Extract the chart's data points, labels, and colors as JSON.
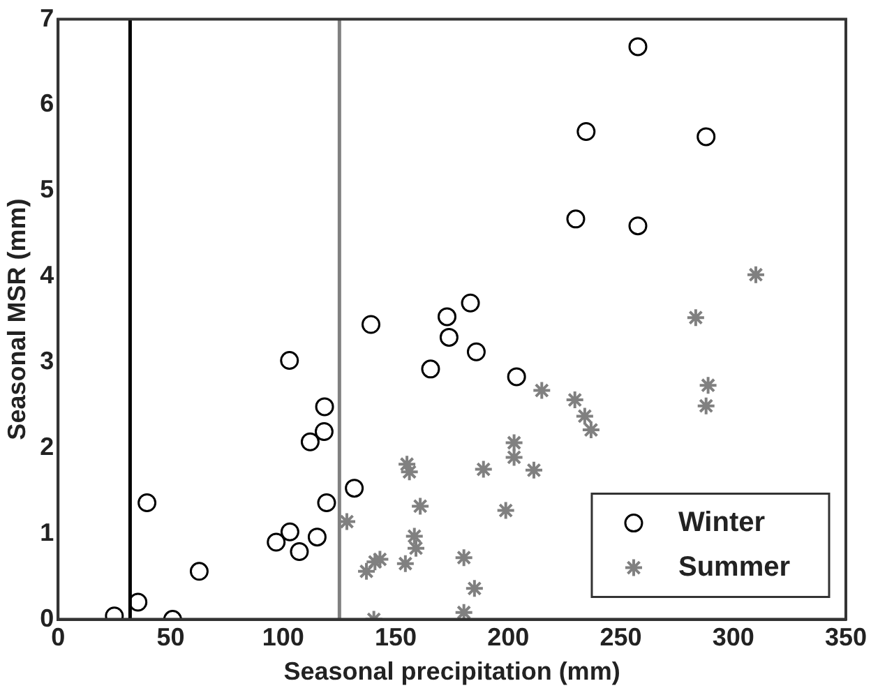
{
  "chart_data": {
    "type": "scatter",
    "xlabel": "Seasonal precipitation (mm)",
    "ylabel": "Seasonal MSR (mm)",
    "xlim": [
      0,
      350
    ],
    "ylim": [
      0,
      7
    ],
    "xticks": [
      0,
      50,
      100,
      150,
      200,
      250,
      300,
      350
    ],
    "yticks": [
      0,
      1,
      2,
      3,
      4,
      5,
      6,
      7
    ],
    "grid": false,
    "legend": "bottom right",
    "series": [
      {
        "name": "Winter",
        "color": "#000000",
        "marker": "circle",
        "x": [
          25,
          35.5,
          50.9,
          39.5,
          62.7,
          102.8,
          96.9,
          103,
          107.2,
          115.1,
          119.3,
          112,
          118.2,
          118.4,
          131.6,
          139,
          165.5,
          172.8,
          173.7,
          183.2,
          185.8,
          203.7,
          230,
          257.6,
          234.6,
          287.9,
          257.6
        ],
        "values": [
          0.04,
          0.2,
          0,
          1.36,
          0.56,
          3.02,
          0.9,
          1.02,
          0.79,
          0.96,
          1.36,
          2.07,
          2.19,
          2.48,
          1.53,
          3.44,
          2.92,
          3.53,
          3.29,
          3.69,
          3.12,
          2.83,
          4.67,
          4.59,
          5.69,
          5.63,
          6.68
        ]
      },
      {
        "name": "Summer",
        "color": "#808080",
        "marker": "cross",
        "x": [
          128.3,
          140.3,
          137,
          140.8,
          143,
          155,
          156.1,
          160.9,
          158.3,
          159,
          154.3,
          180.3,
          185,
          180.3,
          189,
          198.9,
          202.6,
          202.6,
          211.4,
          214.9,
          229.6,
          234,
          236.8,
          283.3,
          288.8,
          287.9,
          310
        ],
        "values": [
          1.14,
          0,
          0.56,
          0.67,
          0.7,
          1.81,
          1.72,
          1.32,
          0.97,
          0.83,
          0.65,
          0.72,
          0.36,
          0.08,
          1.75,
          1.27,
          2.06,
          1.89,
          1.74,
          2.67,
          2.56,
          2.37,
          2.21,
          3.52,
          2.73,
          2.49,
          4.02
        ]
      }
    ],
    "ref_lines": [
      {
        "axis": "x",
        "value": 32,
        "color": "#000000"
      },
      {
        "axis": "x",
        "value": 125,
        "color": "#808080"
      }
    ]
  }
}
